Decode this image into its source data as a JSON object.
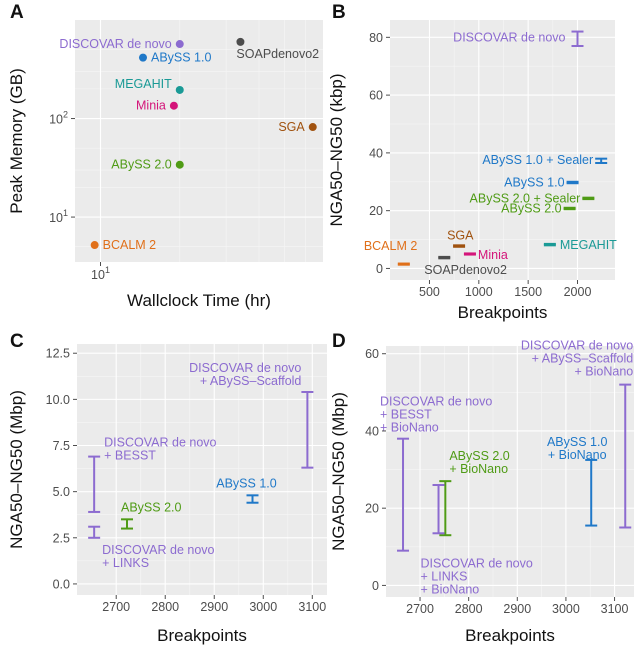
{
  "chart_data": [
    {
      "panel": "A",
      "type": "scatter",
      "xlabel": "Wallclock Time (hr)",
      "ylabel": "Peak Memory (GB)",
      "xscale": "log",
      "yscale": "log",
      "xlim": [
        8,
        70
      ],
      "ylim": [
        3.5,
        1000
      ],
      "xticks": [
        {
          "v": 10,
          "base": "10",
          "exp": "1"
        }
      ],
      "yticks": [
        {
          "v": 10,
          "base": "10",
          "exp": "1"
        },
        {
          "v": 100,
          "base": "10",
          "exp": "2"
        }
      ],
      "points": [
        {
          "label": "DISCOVAR de novo",
          "x": 20.0,
          "y": 570,
          "color": "#8c6bd0",
          "label_pos": "left"
        },
        {
          "label": "SOAPdenovo2",
          "x": 34.0,
          "y": 600,
          "color": "#4d4d4d",
          "label_pos": "below-right"
        },
        {
          "label": "ABySS 1.0",
          "x": 14.5,
          "y": 415,
          "color": "#1f78c8",
          "label_pos": "right"
        },
        {
          "label": "MEGAHIT",
          "x": 20.0,
          "y": 195,
          "color": "#1a9a96",
          "label_pos": "left-up"
        },
        {
          "label": "Minia",
          "x": 19.0,
          "y": 135,
          "color": "#d4157a",
          "label_pos": "left"
        },
        {
          "label": "SGA",
          "x": 64.0,
          "y": 82,
          "color": "#a0520f",
          "label_pos": "left"
        },
        {
          "label": "ABySS 2.0",
          "x": 20.0,
          "y": 34,
          "color": "#4f9b15",
          "label_pos": "left"
        },
        {
          "label": "BCALM 2",
          "x": 9.5,
          "y": 5.2,
          "color": "#e0701a",
          "label_pos": "right"
        }
      ]
    },
    {
      "panel": "B",
      "type": "errorbar",
      "xlabel": "Breakpoints",
      "ylabel": "NGA50–NG50 (kbp)",
      "xlim": [
        100,
        2380
      ],
      "ylim": [
        -4,
        86
      ],
      "xticks": [
        "500",
        "1000",
        "1500",
        "2000"
      ],
      "yticks": [
        "0",
        "20",
        "40",
        "60",
        "80"
      ],
      "bars": [
        {
          "label": "DISCOVAR de novo",
          "x": 2000,
          "low": 77,
          "high": 82,
          "color": "#8c6bd0"
        },
        {
          "label": "ABySS 1.0 + Sealer",
          "x": 2240,
          "low": 36.5,
          "high": 38,
          "color": "#1f78c8"
        },
        {
          "label": "ABySS 1.0",
          "x": 1950,
          "low": 29.5,
          "high": 30,
          "color": "#1f78c8"
        },
        {
          "label": "ABySS 2.0 + Sealer",
          "x": 2110,
          "low": 24,
          "high": 24.5,
          "color": "#4f9b15"
        },
        {
          "label": "ABySS 2.0",
          "x": 1920,
          "low": 20.5,
          "high": 21,
          "color": "#4f9b15"
        },
        {
          "label": "MEGAHIT",
          "x": 1720,
          "low": 8,
          "high": 8.5,
          "color": "#1a9a96"
        },
        {
          "label": "SGA",
          "x": 800,
          "low": 7.5,
          "high": 8,
          "color": "#a0520f"
        },
        {
          "label": "Minia",
          "x": 910,
          "low": 4.8,
          "high": 5.2,
          "color": "#d4157a"
        },
        {
          "label": "SOAPdenovo2",
          "x": 650,
          "low": 3.5,
          "high": 4,
          "color": "#4d4d4d"
        },
        {
          "label": "BCALM 2",
          "x": 240,
          "low": 1.3,
          "high": 1.7,
          "color": "#e0701a"
        }
      ]
    },
    {
      "panel": "C",
      "type": "errorbar",
      "xlabel": "Breakpoints",
      "ylabel": "NGA50–NG50 (Mbp)",
      "xlim": [
        2620,
        3130
      ],
      "ylim": [
        -0.6,
        13
      ],
      "xticks": [
        "2700",
        "2800",
        "2900",
        "3000",
        "3100"
      ],
      "yticks": [
        "0.0",
        "2.5",
        "5.0",
        "7.5",
        "10.0",
        "12.5"
      ],
      "bars": [
        {
          "label": [
            "DISCOVAR de novo",
            "+ ABySS–Scaffold"
          ],
          "x": 3090,
          "low": 6.3,
          "high": 10.4,
          "color": "#8c6bd0"
        },
        {
          "label": [
            "DISCOVAR de novo",
            "+ BESST"
          ],
          "x": 2655,
          "low": 3.9,
          "high": 6.9,
          "color": "#8c6bd0"
        },
        {
          "label": [
            "ABySS 1.0"
          ],
          "x": 2978,
          "low": 4.4,
          "high": 4.8,
          "color": "#1f78c8"
        },
        {
          "label": [
            "ABySS 2.0"
          ],
          "x": 2722,
          "low": 3.0,
          "high": 3.5,
          "color": "#4f9b15"
        },
        {
          "label": [
            "DISCOVAR de novo",
            "+ LINKS"
          ],
          "x": 2655,
          "low": 2.5,
          "high": 3.1,
          "color": "#8c6bd0"
        }
      ]
    },
    {
      "panel": "D",
      "type": "errorbar",
      "xlabel": "Breakpoints",
      "ylabel": "NGA50–NG50 (Mbp)",
      "xlim": [
        2630,
        3140
      ],
      "ylim": [
        -3,
        62
      ],
      "xticks": [
        "2700",
        "2800",
        "2900",
        "3000",
        "3100"
      ],
      "yticks": [
        "0",
        "20",
        "40",
        "60"
      ],
      "bars": [
        {
          "label": [
            "DISCOVAR de novo",
            "+ ABySS–Scaffold",
            "+ BioNano"
          ],
          "x": 3122,
          "low": 15,
          "high": 52,
          "color": "#8c6bd0"
        },
        {
          "label": [
            "DISCOVAR de novo",
            "+ BESST",
            "+ BioNano"
          ],
          "x": 2665,
          "low": 9,
          "high": 38,
          "color": "#8c6bd0"
        },
        {
          "label": [
            "ABySS 1.0",
            "+ BioNano"
          ],
          "x": 3052,
          "low": 15.5,
          "high": 32.5,
          "color": "#1f78c8"
        },
        {
          "label": [
            "ABySS 2.0",
            "+ BioNano"
          ],
          "x": 2752,
          "low": 13,
          "high": 27,
          "color": "#4f9b15"
        },
        {
          "label": [
            "DISCOVAR de novo",
            "+ LINKS",
            "+ BioNano"
          ],
          "x": 2738,
          "low": 13.5,
          "high": 26,
          "color": "#8c6bd0"
        }
      ]
    }
  ]
}
